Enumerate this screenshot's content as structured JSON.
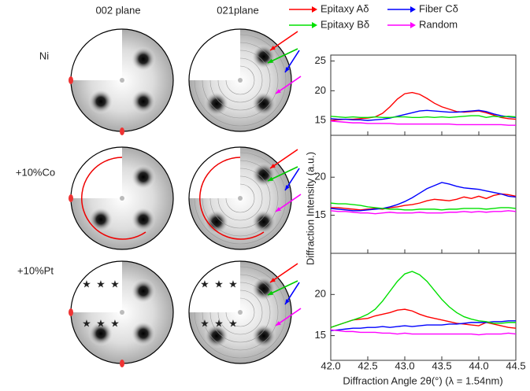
{
  "pole_figures": {
    "columns": [
      "002 plane",
      "021plane"
    ],
    "rows": [
      "Ni",
      "+10%Co",
      "+10%Pt"
    ]
  },
  "chart_data": {
    "type": "line",
    "xlabel": "Diffraction Angle 2θ(°) (λ = 1.54nm)",
    "ylabel": "Diffraction Intensity (a.u.)",
    "x": [
      42.0,
      42.1,
      42.2,
      42.3,
      42.4,
      42.5,
      42.6,
      42.7,
      42.8,
      42.9,
      43.0,
      43.1,
      43.2,
      43.3,
      43.4,
      43.5,
      43.6,
      43.7,
      43.8,
      43.9,
      44.0,
      44.1,
      44.2,
      44.3,
      44.4,
      44.5
    ],
    "xlim": [
      42.0,
      44.5
    ],
    "xticks": [
      {
        "value": 42,
        "label": "42.0"
      },
      42.5,
      {
        "value": 43,
        "label": "43.0"
      },
      43.5,
      {
        "value": 44,
        "label": "44.0"
      },
      44.5
    ],
    "series": [
      {
        "name": "Epitaxy Aδ",
        "color": "#ff0000"
      },
      {
        "name": "Fiber Cδ",
        "color": "#0000ff"
      },
      {
        "name": "Epitaxy Bδ",
        "color": "#00e000"
      },
      {
        "name": "Random",
        "color": "#ff00ff"
      }
    ],
    "panels": [
      {
        "ylim": [
          12.5,
          26
        ],
        "yticks": [
          15,
          20,
          25
        ],
        "values": [
          [
            15.0,
            15.1,
            15.2,
            15.2,
            15.3,
            15.4,
            15.6,
            16.2,
            17.3,
            18.6,
            19.5,
            19.7,
            19.4,
            18.7,
            17.9,
            17.3,
            16.9,
            16.5,
            16.4,
            16.5,
            16.6,
            16.3,
            15.9,
            15.5,
            15.3,
            15.2
          ],
          [
            15.3,
            15.2,
            15.2,
            15.1,
            15.1,
            15.0,
            15.1,
            15.2,
            15.4,
            15.7,
            16.0,
            16.3,
            16.6,
            16.7,
            16.6,
            16.5,
            16.4,
            16.4,
            16.5,
            16.6,
            16.7,
            16.5,
            16.1,
            15.8,
            15.6,
            15.5
          ],
          [
            15.7,
            15.6,
            15.5,
            15.6,
            15.5,
            15.5,
            15.6,
            15.5,
            15.5,
            15.6,
            15.6,
            15.5,
            15.5,
            15.6,
            15.5,
            15.6,
            15.5,
            15.6,
            15.7,
            15.8,
            15.8,
            15.5,
            15.7,
            15.6,
            15.7,
            15.6
          ],
          [
            14.9,
            14.8,
            14.7,
            14.6,
            14.6,
            14.5,
            14.5,
            14.5,
            14.5,
            14.4,
            14.4,
            14.4,
            14.4,
            14.4,
            14.4,
            14.4,
            14.4,
            14.3,
            14.3,
            14.3,
            14.3,
            14.3,
            14.3,
            14.3,
            14.2,
            14.2
          ]
        ]
      },
      {
        "ylim": [
          10,
          25.5
        ],
        "yticks": [
          15,
          20
        ],
        "values": [
          [
            16.0,
            16.0,
            15.9,
            15.8,
            15.7,
            15.8,
            15.9,
            15.8,
            16.0,
            16.1,
            16.3,
            16.4,
            16.6,
            16.9,
            17.1,
            17.0,
            16.9,
            17.1,
            17.4,
            17.2,
            17.5,
            17.2,
            17.6,
            17.8,
            17.7,
            17.5
          ],
          [
            15.9,
            15.8,
            15.7,
            15.6,
            15.6,
            15.7,
            15.8,
            15.9,
            16.1,
            16.4,
            16.8,
            17.3,
            17.9,
            18.5,
            18.9,
            19.3,
            19.1,
            18.8,
            18.6,
            18.5,
            18.4,
            18.2,
            18.0,
            17.8,
            17.5,
            17.4
          ],
          [
            16.6,
            16.5,
            16.5,
            16.4,
            16.3,
            16.1,
            16.0,
            15.9,
            15.8,
            15.8,
            15.7,
            15.7,
            15.8,
            15.8,
            15.8,
            15.7,
            15.8,
            15.8,
            15.9,
            15.9,
            15.9,
            15.8,
            15.9,
            16.0,
            16.0,
            15.9
          ],
          [
            15.6,
            15.5,
            15.5,
            15.4,
            15.3,
            15.3,
            15.2,
            15.3,
            15.4,
            15.3,
            15.3,
            15.3,
            15.4,
            15.3,
            15.3,
            15.3,
            15.4,
            15.4,
            15.5,
            15.4,
            15.5,
            15.4,
            15.5,
            15.5,
            15.6,
            15.5
          ]
        ]
      },
      {
        "ylim": [
          12,
          25
        ],
        "yticks": [
          15,
          20
        ],
        "values": [
          [
            16.0,
            16.3,
            16.6,
            16.9,
            17.0,
            17.1,
            17.4,
            17.6,
            17.8,
            18.1,
            18.2,
            18.0,
            17.6,
            17.3,
            17.1,
            16.9,
            16.7,
            16.5,
            16.4,
            16.3,
            16.2,
            16.6,
            16.4,
            16.2,
            16.0,
            15.9
          ],
          [
            15.6,
            15.7,
            15.8,
            15.9,
            15.9,
            16.0,
            16.0,
            16.1,
            16.0,
            16.1,
            16.2,
            16.1,
            16.2,
            16.3,
            16.3,
            16.3,
            16.4,
            16.4,
            16.5,
            16.6,
            16.6,
            16.6,
            16.7,
            16.7,
            16.8,
            16.8
          ],
          [
            16.0,
            16.3,
            16.6,
            16.9,
            17.2,
            17.6,
            18.2,
            19.2,
            20.4,
            21.6,
            22.5,
            22.8,
            22.4,
            21.6,
            20.5,
            19.4,
            18.5,
            17.8,
            17.3,
            17.0,
            16.8,
            16.7,
            16.5,
            16.5,
            16.6,
            16.6
          ],
          [
            15.7,
            15.6,
            15.5,
            15.5,
            15.4,
            15.4,
            15.4,
            15.3,
            15.3,
            15.2,
            15.3,
            15.2,
            15.2,
            15.2,
            15.2,
            15.2,
            15.2,
            15.2,
            15.2,
            15.2,
            15.1,
            15.2,
            15.2,
            15.2,
            15.3,
            15.2
          ]
        ]
      }
    ]
  }
}
